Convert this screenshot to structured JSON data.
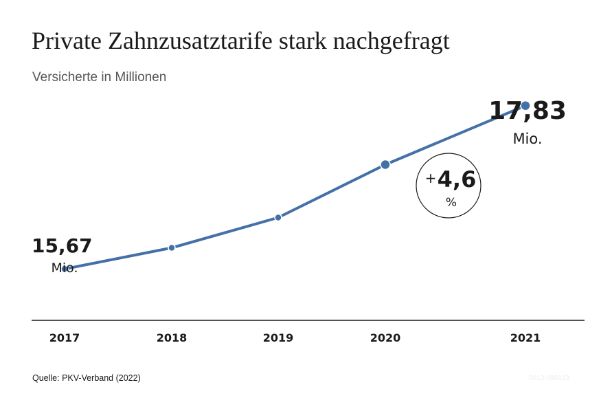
{
  "header": {
    "title": "Private Zahnzusatztarife stark nachgefragt",
    "subtitle": "Versicherte in Millionen"
  },
  "chart_data": {
    "type": "line",
    "x": [
      "2017",
      "2018",
      "2019",
      "2020",
      "2021"
    ],
    "series": [
      {
        "values": [
          15.67,
          15.95,
          16.35,
          17.05,
          17.83
        ]
      }
    ],
    "ylim": [
      15.0,
      18.5
    ],
    "grid": false,
    "annotations": {
      "start_value": "15,67",
      "start_unit": "Mio.",
      "end_value": "17,83",
      "end_unit": "Mio.",
      "change_sign": "+",
      "change_value": "4,6",
      "change_unit": "%"
    },
    "colors": {
      "line": "#4470a8",
      "axis": "#1a1a1a"
    }
  },
  "footer": {
    "source": "Quelle: PKV-Verband (2022)",
    "ref": "0013-098123"
  }
}
